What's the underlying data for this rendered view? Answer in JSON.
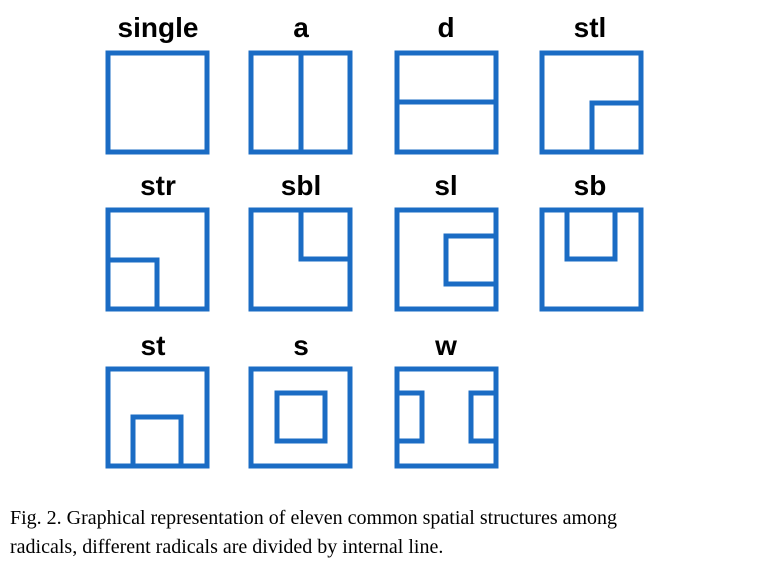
{
  "nodes": [
    {
      "label": "single"
    },
    {
      "label": "a"
    },
    {
      "label": "d"
    },
    {
      "label": "stl"
    },
    {
      "label": "str"
    },
    {
      "label": "sbl"
    },
    {
      "label": "sl"
    },
    {
      "label": "sb"
    },
    {
      "label": "st"
    },
    {
      "label": "s"
    },
    {
      "label": "w"
    }
  ],
  "caption": {
    "lines": [
      "Fig. 2.  Graphical representation of eleven common spatial structures among",
      "radicals, different radicals are divided by internal line."
    ]
  }
}
